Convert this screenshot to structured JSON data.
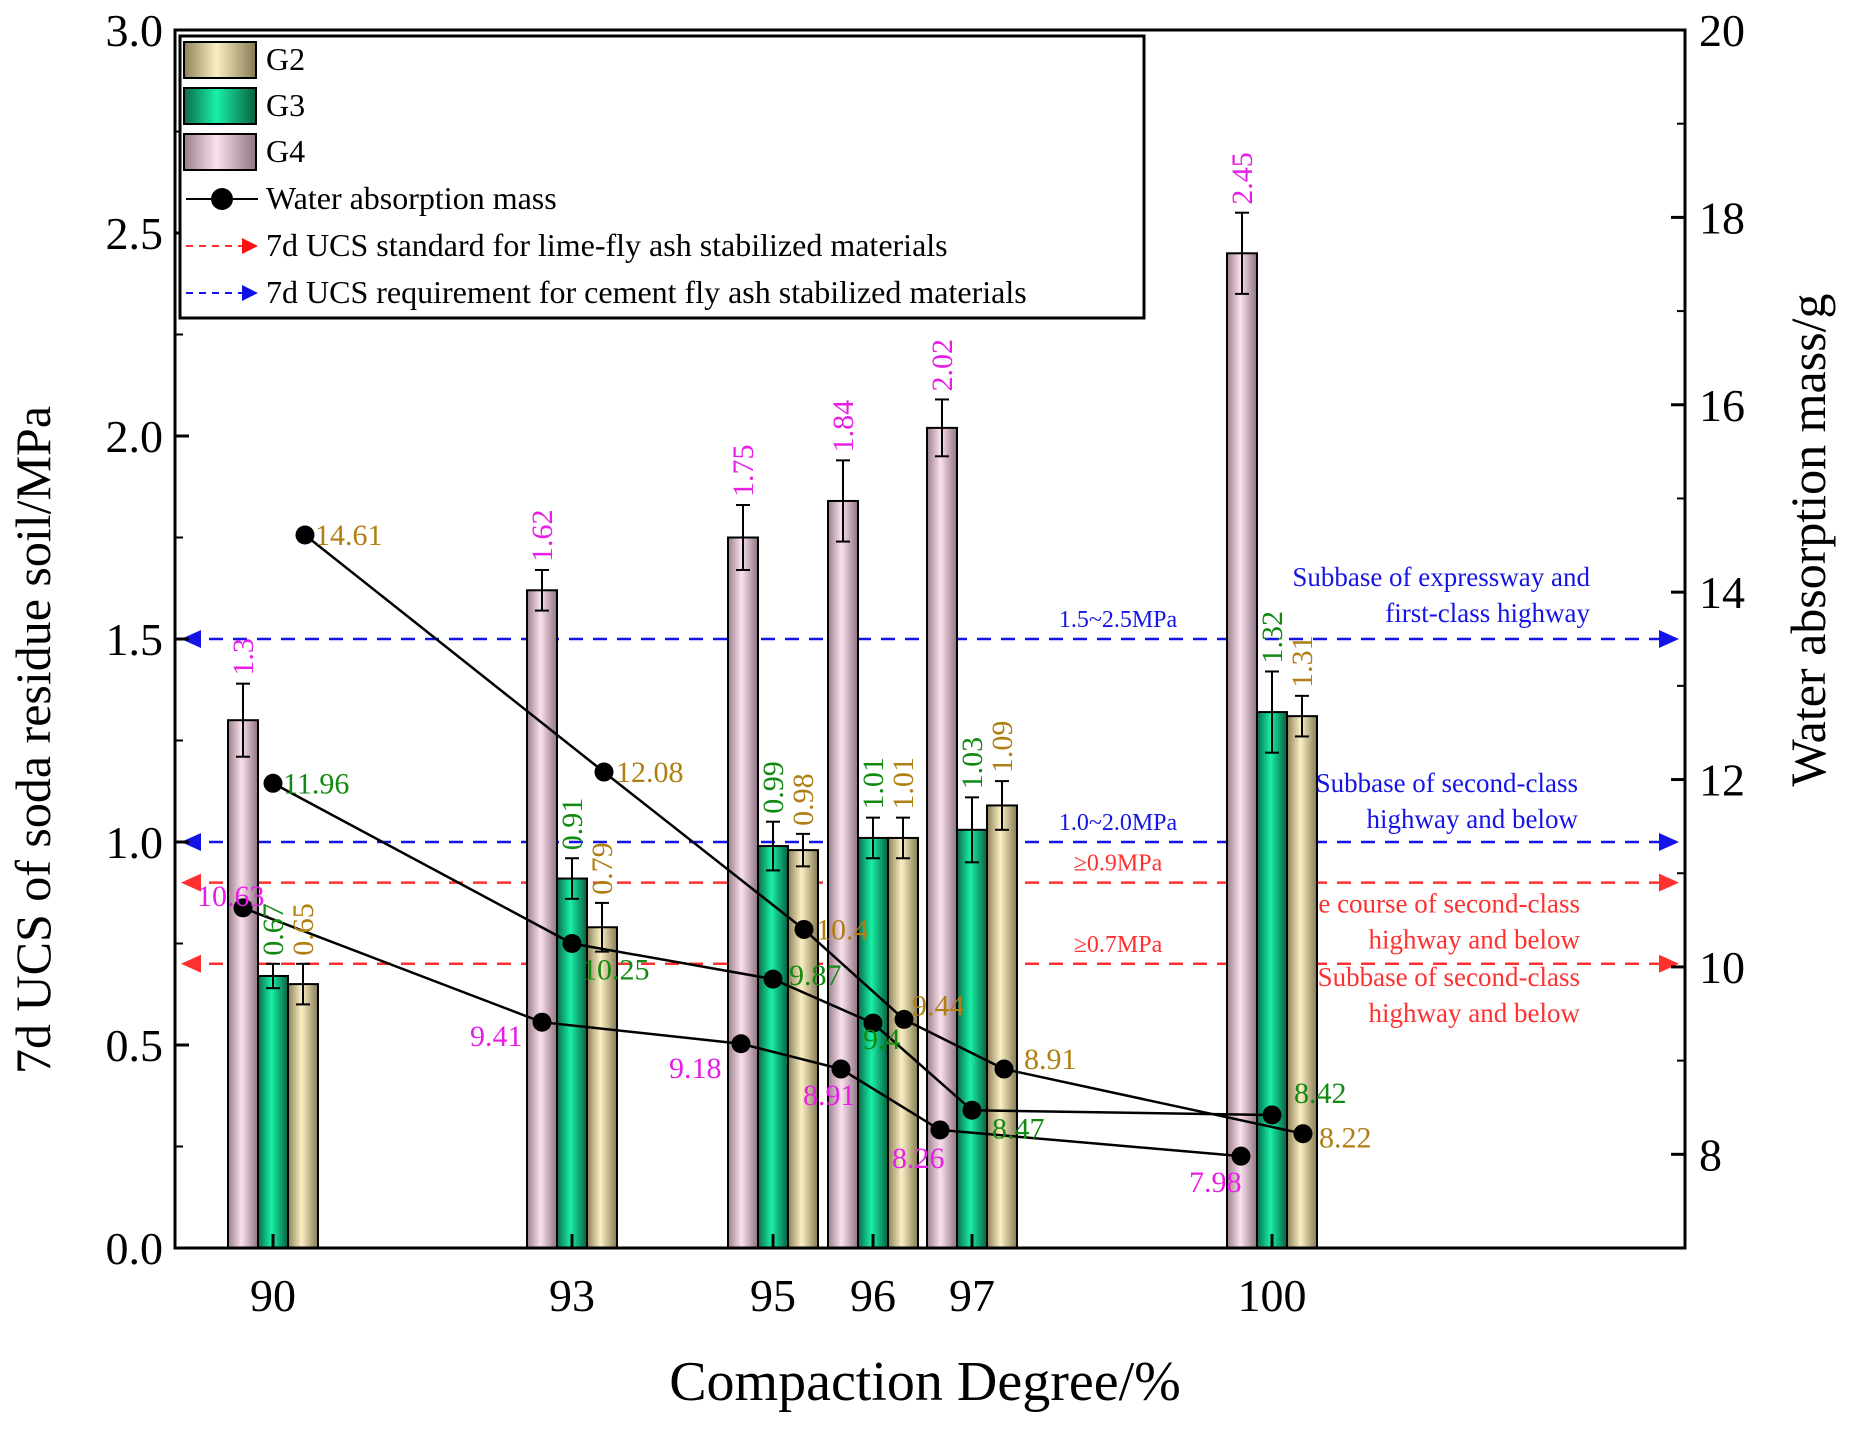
{
  "chart_data": {
    "type": "bar",
    "xlabel": "Compaction Degree/%",
    "ylabel_left": "7d UCS of soda residue soil/MPa",
    "ylabel_right": "Water absorption mass/g",
    "ylim_left": [
      0,
      3.0
    ],
    "ylim_right": [
      7,
      20
    ],
    "yticks_left": [
      "0.0",
      "0.5",
      "1.0",
      "1.5",
      "2.0",
      "2.5",
      "3.0"
    ],
    "yticks_right": [
      "8",
      "10",
      "12",
      "14",
      "16",
      "18",
      "20"
    ],
    "categories": [
      "90",
      "93",
      "95",
      "96",
      "97",
      "100"
    ],
    "colors": {
      "G2": "#efe1a6",
      "G3": "#0fcf8e",
      "G4": "#f3c8de",
      "G2_label": "#b07f12",
      "G3_label": "#128a12",
      "G4_label": "#e61ee6",
      "red_line": "#ff3030",
      "blue_line": "#1414e6"
    },
    "series": [
      {
        "name": "G4",
        "values": [
          1.3,
          1.62,
          1.75,
          1.84,
          2.02,
          2.45
        ],
        "errors": [
          0.09,
          0.05,
          0.08,
          0.1,
          0.07,
          0.1
        ],
        "labels": [
          "1.3",
          "1.62",
          "1.75",
          "1.84",
          "2.02",
          "2.45"
        ]
      },
      {
        "name": "G3",
        "values": [
          0.67,
          0.91,
          0.99,
          1.01,
          1.03,
          1.32
        ],
        "errors": [
          0.03,
          0.05,
          0.06,
          0.05,
          0.08,
          0.1
        ],
        "labels": [
          "0.67",
          "0.91",
          "0.99",
          "1.01",
          "1.03",
          "1.32"
        ]
      },
      {
        "name": "G2",
        "values": [
          0.65,
          0.79,
          0.98,
          1.01,
          1.09,
          1.31
        ],
        "errors": [
          0.05,
          0.06,
          0.04,
          0.05,
          0.06,
          0.05
        ],
        "labels": [
          "0.65",
          "0.79",
          "0.98",
          "1.01",
          "1.09",
          "1.31"
        ]
      }
    ],
    "water_absorption": {
      "name": "Water absorption mass",
      "G4": {
        "values": [
          10.63,
          9.41,
          9.18,
          8.91,
          8.26,
          7.98
        ],
        "labels": [
          "10.63",
          "9.41",
          "9.18",
          "8.91",
          "8.26",
          "7.98"
        ]
      },
      "G3": {
        "values": [
          11.96,
          10.25,
          9.87,
          9.4,
          8.47,
          8.42
        ],
        "labels": [
          "11.96",
          "10.25",
          "9.87",
          "9.4",
          "8.47",
          "8.42"
        ]
      },
      "G2": {
        "values": [
          14.61,
          12.08,
          10.4,
          9.44,
          8.91,
          8.22
        ],
        "labels": [
          "14.61",
          "12.08",
          "10.4",
          "9.44",
          "8.91",
          "8.22"
        ]
      }
    },
    "reference_lines": [
      {
        "value": 1.5,
        "color": "blue",
        "range_label": "1.5~2.5MPa",
        "note": [
          "Subbase of expressway and",
          "first-class highway"
        ]
      },
      {
        "value": 1.0,
        "color": "blue",
        "range_label": "1.0~2.0MPa",
        "note": [
          "Subbase of second-class",
          "highway and below"
        ]
      },
      {
        "value": 0.9,
        "color": "red",
        "range_label": "≥0.9MPa",
        "note": [
          "Base course of second-class",
          "highway and below"
        ]
      },
      {
        "value": 0.7,
        "color": "red",
        "range_label": "≥0.7MPa",
        "note": [
          "Subbase of second-class",
          "highway and below"
        ]
      }
    ],
    "legend": {
      "position": "top-left",
      "entries": [
        "G2",
        "G3",
        "G4",
        "Water absorption mass",
        "7d UCS standard for lime-fly ash stabilized materials",
        "7d UCS requirement for cement fly ash stabilized materials"
      ]
    }
  }
}
